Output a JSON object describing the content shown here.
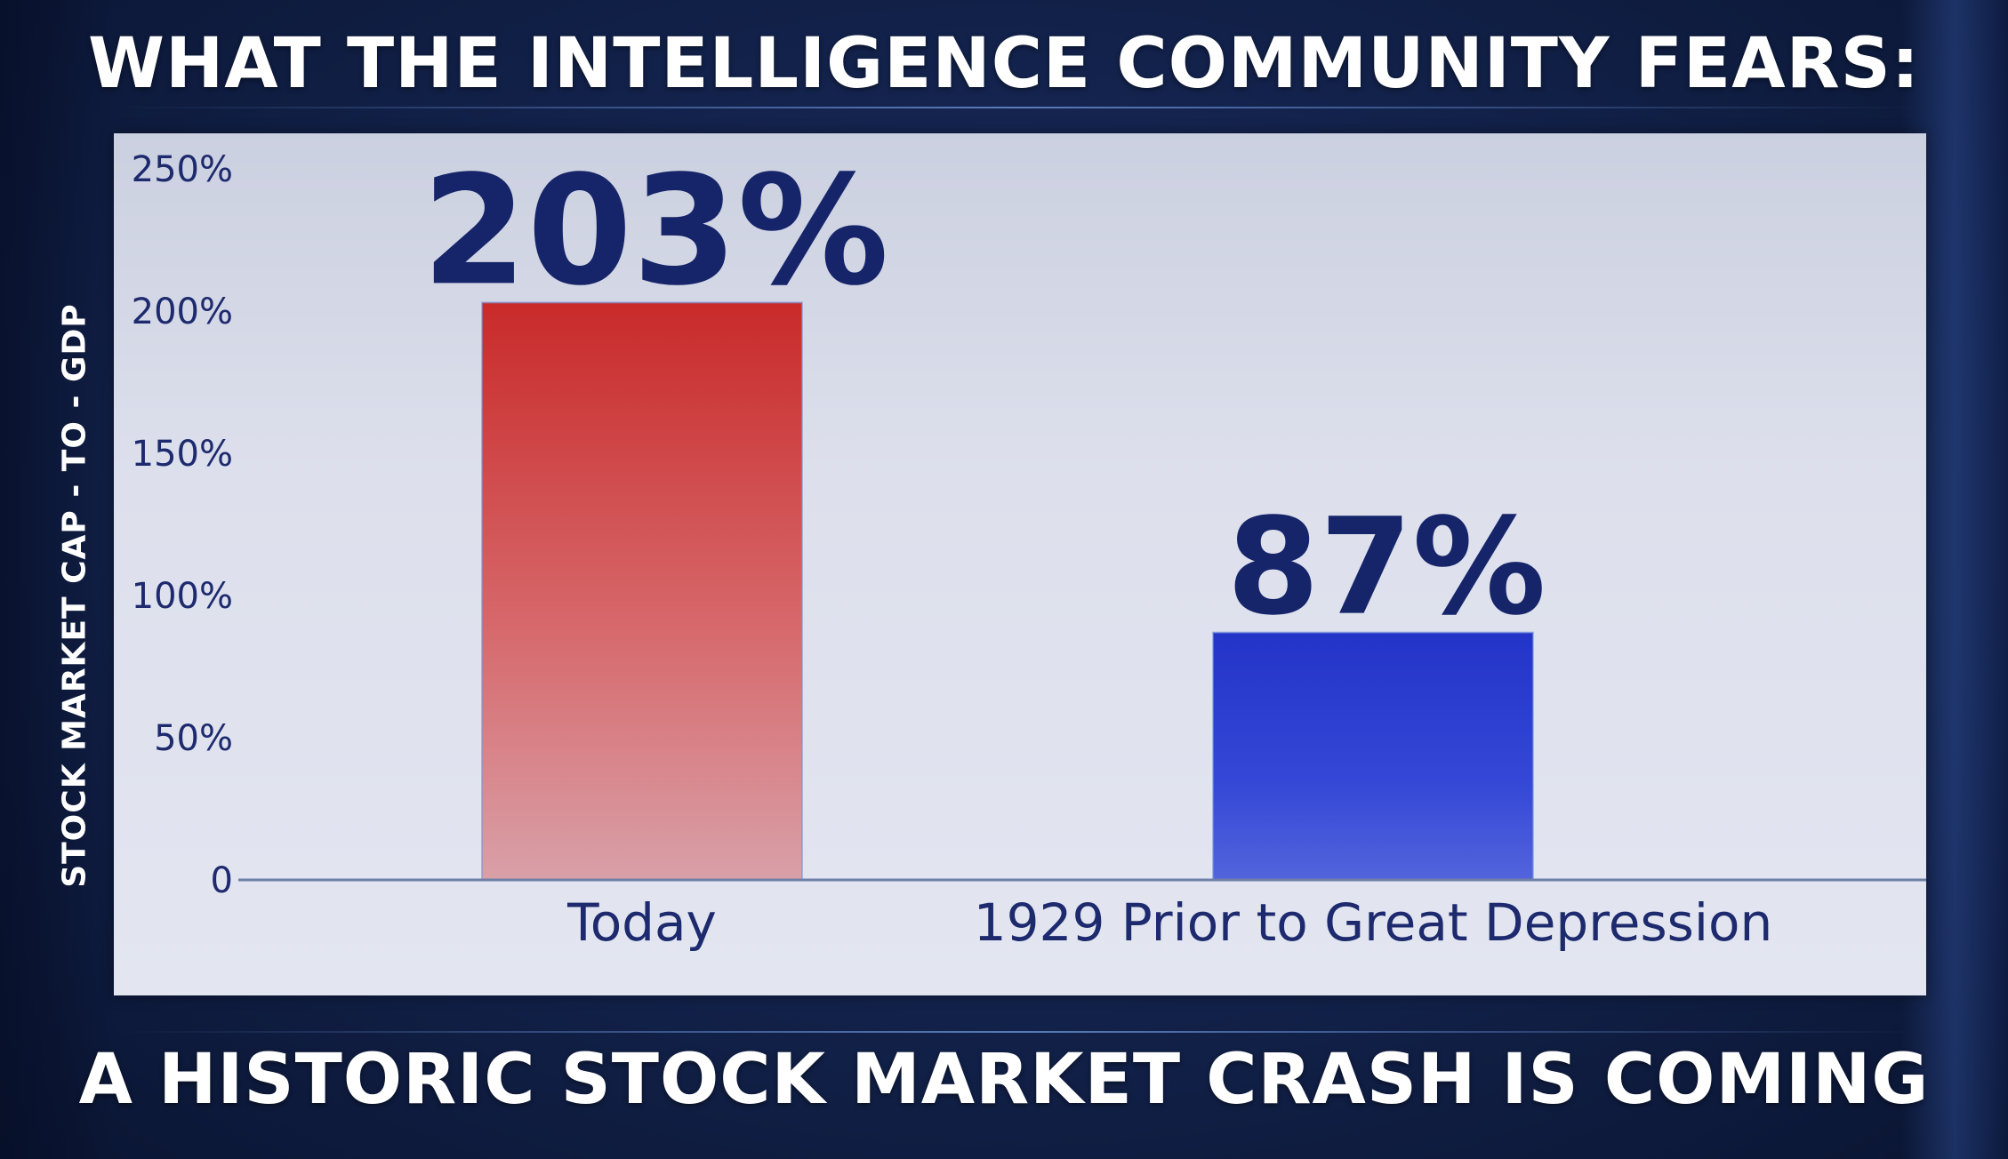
{
  "header": {
    "title": "WHAT THE INTELLIGENCE COMMUNITY FEARS:"
  },
  "footer": {
    "title": "A HISTORIC STOCK MARKET CRASH IS COMING"
  },
  "chart_data": {
    "type": "bar",
    "categories": [
      "Today",
      "1929 Prior to Great Depression"
    ],
    "values": [
      203,
      87
    ],
    "value_labels": [
      "203%",
      "87%"
    ],
    "ylabel": "STOCK MARKET CAP - TO - GDP",
    "ylim": [
      0,
      250
    ],
    "yticks": [
      0,
      50,
      100,
      150,
      200,
      250
    ],
    "ytick_labels": [
      "0",
      "50%",
      "100%",
      "150%",
      "200%",
      "250%"
    ],
    "grid": false,
    "colors": [
      "#d03030",
      "#2c3fd2"
    ]
  }
}
